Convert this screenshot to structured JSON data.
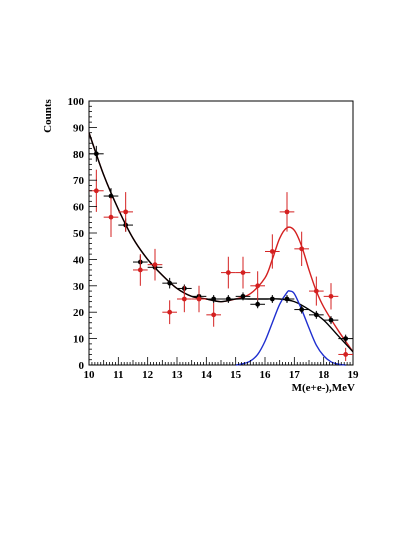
{
  "chart_data": {
    "type": "scatter",
    "title": "",
    "xlabel": "M(e+e-),MeV",
    "ylabel": "Counts",
    "xlim": [
      10,
      19
    ],
    "ylim": [
      0,
      100
    ],
    "xticks": [
      10,
      11,
      12,
      13,
      14,
      15,
      16,
      17,
      18,
      19
    ],
    "xtick_labels": [
      "10",
      "11",
      "12",
      "13",
      "14",
      "15",
      "16",
      "17",
      "18",
      "19"
    ],
    "yticks": [
      0,
      10,
      20,
      30,
      40,
      50,
      60,
      70,
      80,
      90,
      100
    ],
    "ytick_labels": [
      "0",
      "10",
      "20",
      "30",
      "40",
      "50",
      "60",
      "70",
      "80",
      "90",
      "100"
    ],
    "grid": false,
    "series": [
      {
        "color": "#000000",
        "x": [
          10.25,
          10.75,
          11.25,
          11.75,
          12.25,
          12.75,
          13.25,
          13.75,
          14.25,
          14.75,
          15.25,
          15.75,
          16.25,
          16.75,
          17.25,
          17.75,
          18.25,
          18.75
        ],
        "y": [
          80,
          64,
          53,
          39,
          37,
          31,
          29,
          26,
          25,
          25,
          26,
          23,
          25,
          25,
          21,
          19,
          17,
          10
        ],
        "yerr": [
          3,
          3,
          2.5,
          2.5,
          2,
          2,
          1.5,
          1.5,
          1.5,
          1.5,
          1.5,
          1.5,
          1.5,
          1.5,
          1.5,
          1.5,
          1.5,
          1.5
        ]
      },
      {
        "color": "#d42020",
        "x": [
          10.25,
          10.75,
          11.25,
          11.75,
          12.25,
          12.75,
          13.25,
          13.75,
          14.25,
          14.75,
          15.25,
          15.75,
          16.25,
          16.75,
          17.25,
          17.75,
          18.25,
          18.75
        ],
        "y": [
          66,
          56,
          58,
          36,
          38,
          20,
          25,
          25,
          19,
          35,
          35,
          30,
          43,
          58,
          44,
          28,
          26,
          4
        ],
        "yerr": [
          8,
          7.5,
          7.5,
          6,
          6,
          4.5,
          5,
          5,
          4.5,
          6,
          6,
          5.5,
          6.5,
          7.5,
          6.5,
          5.5,
          5,
          2.5
        ]
      }
    ],
    "curves": [
      {
        "color": "#d42020",
        "x": [
          10.0,
          10.5,
          11.0,
          11.5,
          12.0,
          12.5,
          13.0,
          13.5,
          14.0,
          14.5,
          15.0,
          15.5,
          16.0,
          16.25,
          16.5,
          16.75,
          17.0,
          17.25,
          17.5,
          17.75,
          18.0,
          18.5,
          19.0
        ],
        "y": [
          88,
          72,
          59,
          48,
          40,
          34,
          29,
          26,
          25,
          24,
          25,
          27,
          33,
          40,
          48,
          52,
          51,
          45,
          36,
          28,
          22,
          13,
          5
        ]
      },
      {
        "color": "#000000",
        "x": [
          10.0,
          10.5,
          11.0,
          11.5,
          12.0,
          12.5,
          13.0,
          13.5,
          14.0,
          14.5,
          15.0,
          15.5,
          16.0,
          16.5,
          17.0,
          17.5,
          18.0,
          18.5,
          19.0
        ],
        "y": [
          88,
          72,
          59,
          48,
          40,
          34,
          29,
          26,
          25,
          24,
          25,
          25,
          25,
          25,
          24,
          21,
          17,
          11,
          5
        ]
      },
      {
        "color": "#1f2fd0",
        "x": [
          15.0,
          15.25,
          15.5,
          15.75,
          16.0,
          16.25,
          16.5,
          16.75,
          16.85,
          17.0,
          17.25,
          17.5,
          17.75,
          18.0,
          18.25,
          18.5,
          18.75
        ],
        "y": [
          0,
          0.5,
          1.5,
          4,
          9,
          16,
          23,
          27.5,
          28,
          27,
          21,
          14,
          7.5,
          3.5,
          1.2,
          0.3,
          0
        ]
      }
    ]
  }
}
